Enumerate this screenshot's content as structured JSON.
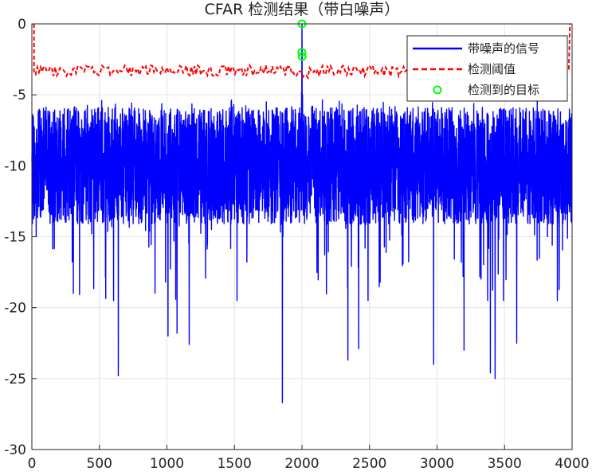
{
  "chart_data": {
    "type": "line",
    "title": "CFAR 检测结果（带白噪声）",
    "xlabel": "",
    "ylabel": "",
    "xlim": [
      0,
      4000
    ],
    "ylim": [
      -30,
      0
    ],
    "grid": true,
    "legend_position": "top-right",
    "x_ticks": [
      0,
      500,
      1000,
      1500,
      2000,
      2500,
      3000,
      3500,
      4000
    ],
    "x_tick_labels": [
      "0",
      "500",
      "1000",
      "1500",
      "2000",
      "2500",
      "3000",
      "3500",
      "4000"
    ],
    "y_ticks": [
      0,
      -5,
      -10,
      -15,
      -20,
      -25,
      -30
    ],
    "y_tick_labels": [
      "0",
      "-5",
      "-10",
      "-15",
      "-20",
      "-25",
      "-30"
    ],
    "series": [
      {
        "name": "带噪声的信号",
        "style": "solid",
        "color": "#0000ff",
        "summary": {
          "n_points": 4000,
          "baseline": -10,
          "typical_range": [
            -15,
            -6
          ]
        },
        "peaks": [
          {
            "x": 2000,
            "y": 0
          },
          {
            "x": 1999,
            "y": -2.0
          },
          {
            "x": 2001,
            "y": -2.3
          },
          {
            "x": 1997,
            "y": -4.8
          },
          {
            "x": 2004,
            "y": -5.0
          }
        ],
        "notable_minima": [
          {
            "x": 640,
            "y": -24.8
          },
          {
            "x": 1008,
            "y": -22.0
          },
          {
            "x": 1075,
            "y": -21.8
          },
          {
            "x": 1165,
            "y": -22.6
          },
          {
            "x": 1855,
            "y": -26.7
          },
          {
            "x": 2340,
            "y": -23.7
          },
          {
            "x": 2420,
            "y": -22.9
          },
          {
            "x": 2975,
            "y": -24.0
          },
          {
            "x": 3200,
            "y": -23.0
          },
          {
            "x": 3395,
            "y": -24.6
          },
          {
            "x": 3430,
            "y": -25.0
          },
          {
            "x": 3590,
            "y": -22.5
          }
        ]
      },
      {
        "name": "检测阈值",
        "style": "dashed",
        "color": "#ff0000",
        "summary": {
          "level": -3.3,
          "range": [
            -3.8,
            -2.8
          ]
        },
        "edges": {
          "left_x": 16,
          "right_x": 3984,
          "edge_y": 0
        }
      },
      {
        "name": "检测到的目标",
        "style": "marker",
        "marker": "circle",
        "color": "#00ff00",
        "points": [
          {
            "x": 2000,
            "y": 0
          },
          {
            "x": 1999,
            "y": -2.0
          },
          {
            "x": 2001,
            "y": -2.3
          }
        ]
      }
    ]
  }
}
